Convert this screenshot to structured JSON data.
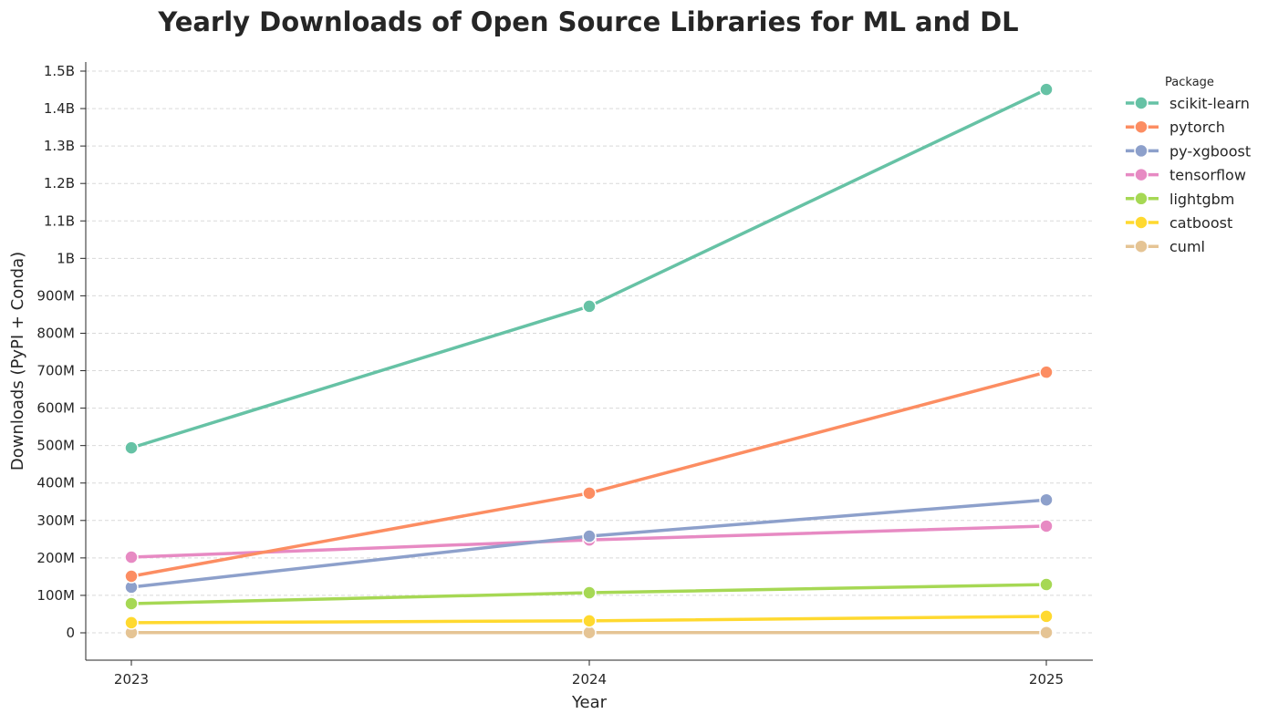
{
  "chart_data": {
    "type": "line",
    "title": "Yearly Downloads of Open Source Libraries for ML and DL",
    "xlabel": "Year",
    "ylabel": "Downloads (PyPI + Conda)",
    "x": [
      "2023",
      "2024",
      "2025"
    ],
    "ylim": [
      -75000000,
      1520000000
    ],
    "yticks": [
      0,
      100000000,
      200000000,
      300000000,
      400000000,
      500000000,
      600000000,
      700000000,
      800000000,
      900000000,
      1000000000,
      1100000000,
      1200000000,
      1300000000,
      1400000000,
      1500000000
    ],
    "ytick_labels": [
      "0",
      "100M",
      "200M",
      "300M",
      "400M",
      "500M",
      "600M",
      "700M",
      "800M",
      "900M",
      "1B",
      "1.1B",
      "1.2B",
      "1.3B",
      "1.4B",
      "1.5B"
    ],
    "grid": "horizontal dashed",
    "legend": {
      "title": "Package",
      "placement": "outside-right"
    },
    "series": [
      {
        "name": "scikit-learn",
        "color": "#66c2a5",
        "values": [
          494000000,
          872000000,
          1451000000
        ]
      },
      {
        "name": "pytorch",
        "color": "#fc8d62",
        "values": [
          151000000,
          373000000,
          696000000
        ]
      },
      {
        "name": "py-xgboost",
        "color": "#8da0cb",
        "values": [
          122000000,
          258000000,
          355000000
        ]
      },
      {
        "name": "tensorflow",
        "color": "#e78ac3",
        "values": [
          202000000,
          248000000,
          285000000
        ]
      },
      {
        "name": "lightgbm",
        "color": "#a6d854",
        "values": [
          78000000,
          107000000,
          129000000
        ]
      },
      {
        "name": "catboost",
        "color": "#ffd92f",
        "values": [
          27000000,
          32000000,
          44000000
        ]
      },
      {
        "name": "cuml",
        "color": "#e5c494",
        "values": [
          500000,
          600000,
          700000
        ]
      }
    ]
  }
}
